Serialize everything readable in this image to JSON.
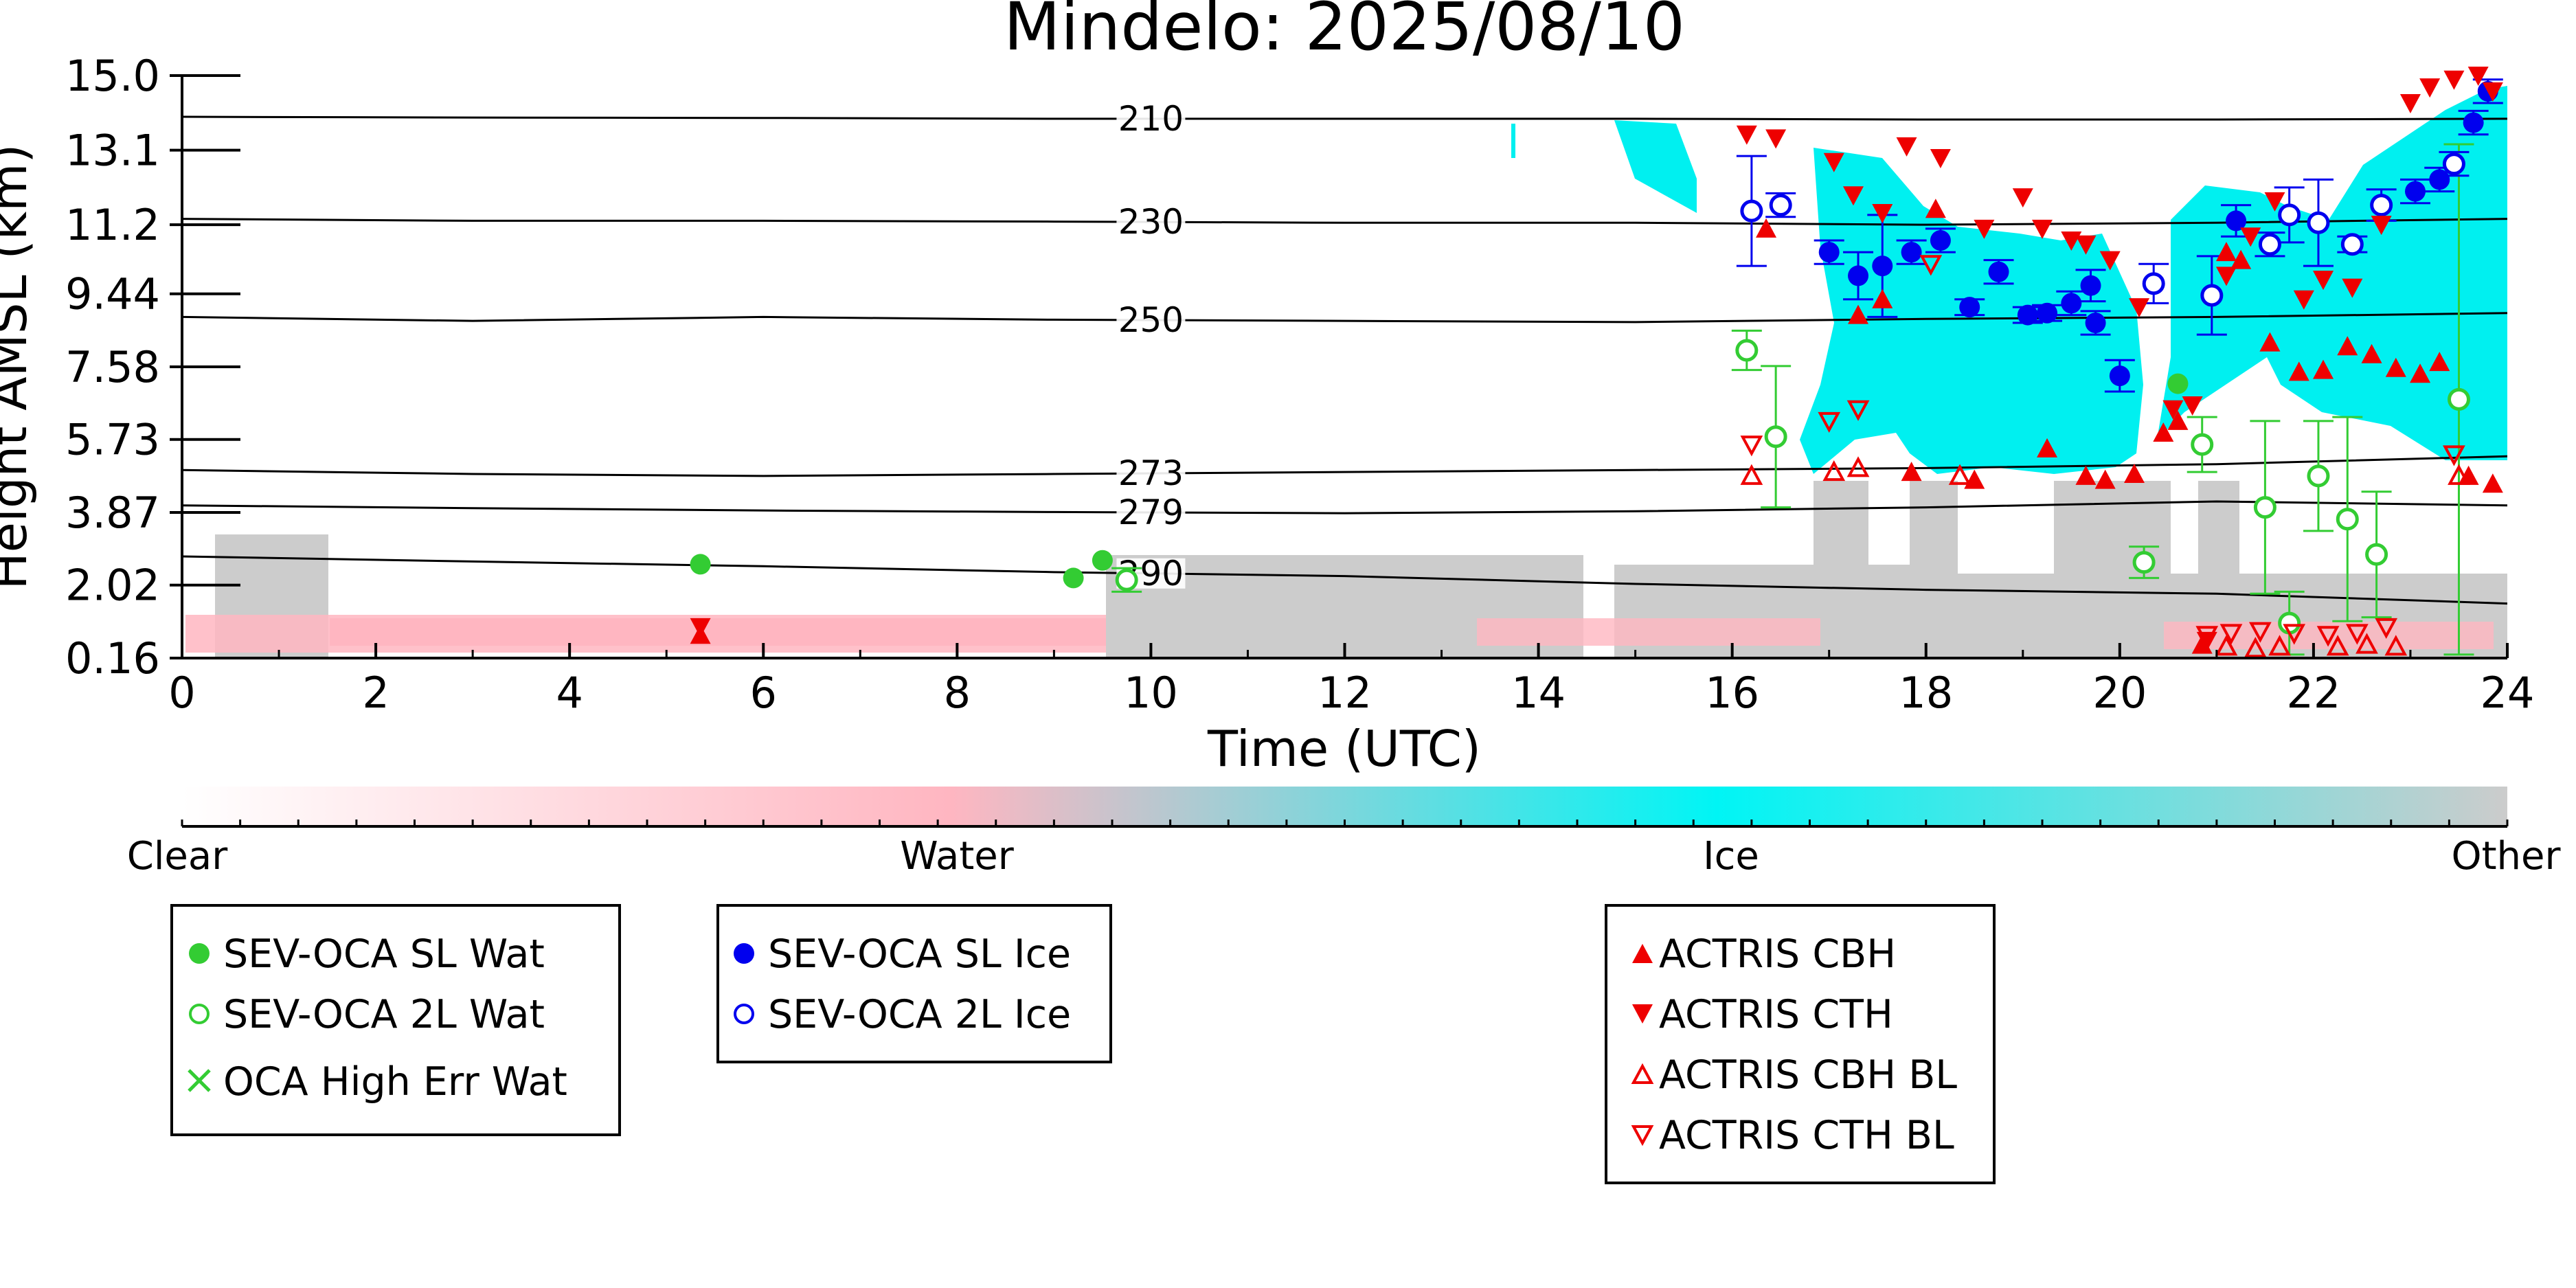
{
  "chart_data": {
    "type": "scatter",
    "title": "Mindelo: 2025/08/10",
    "xlabel": "Time (UTC)",
    "ylabel": "Height AMSL (km)",
    "xlim": [
      0,
      24
    ],
    "ylim": [
      0.16,
      15.0
    ],
    "x_ticks": [
      "0",
      "2",
      "4",
      "6",
      "8",
      "10",
      "12",
      "14",
      "16",
      "18",
      "20",
      "22",
      "24"
    ],
    "y_ticks": [
      "0.16",
      "2.02",
      "3.87",
      "5.73",
      "7.58",
      "9.44",
      "11.2",
      "13.1",
      "15.0"
    ],
    "y_tick_values": [
      0.16,
      2.02,
      3.87,
      5.73,
      7.58,
      9.44,
      11.2,
      13.1,
      15.0
    ],
    "colorbar": {
      "labels": [
        "Clear",
        "Water",
        "Ice",
        "Other"
      ],
      "colors": [
        "#ffffff",
        "#ffb6c1",
        "#00ffff",
        "#cccccc"
      ]
    },
    "isotherms": [
      {
        "label": "210",
        "label_x": 10.0,
        "y": [
          13.95,
          13.93,
          13.92,
          13.9,
          13.9,
          13.9,
          13.88,
          13.88,
          13.9
        ]
      },
      {
        "label": "230",
        "label_x": 10.0,
        "y": [
          11.35,
          11.3,
          11.3,
          11.28,
          11.25,
          11.25,
          11.2,
          11.25,
          11.35
        ]
      },
      {
        "label": "250",
        "label_x": 10.0,
        "y": [
          8.85,
          8.75,
          8.85,
          8.78,
          8.75,
          8.72,
          8.8,
          8.85,
          8.95
        ]
      },
      {
        "label": "273",
        "label_x": 10.0,
        "y": [
          4.95,
          4.85,
          4.8,
          4.85,
          4.9,
          4.95,
          5.0,
          5.1,
          5.3
        ]
      },
      {
        "label": "279",
        "label_x": 10.0,
        "y": [
          4.05,
          3.98,
          3.92,
          3.88,
          3.85,
          3.9,
          4.0,
          4.15,
          4.05
        ]
      },
      {
        "label": "290",
        "label_x": 10.0,
        "y": [
          2.75,
          2.62,
          2.5,
          2.35,
          2.25,
          2.05,
          1.9,
          1.8,
          1.55
        ]
      }
    ],
    "series": [
      {
        "name": "SEV-OCA SL Wat",
        "marker": "filled-circle",
        "color": "#33cc33",
        "x": [
          5.35,
          9.2,
          9.5,
          20.6
        ],
        "y": [
          2.55,
          2.2,
          2.65,
          7.15
        ]
      },
      {
        "name": "SEV-OCA 2L Wat",
        "marker": "open-circle",
        "color": "#33cc33",
        "x": [
          16.15,
          16.45,
          9.75,
          20.25,
          20.85,
          21.5,
          21.75,
          22.05,
          22.35,
          22.65,
          23.5
        ],
        "y": [
          8.0,
          5.8,
          2.15,
          2.6,
          5.6,
          4.0,
          1.05,
          4.8,
          3.7,
          2.8,
          6.75
        ],
        "err": [
          0.5,
          1.8,
          0.3,
          0.4,
          0.7,
          2.2,
          0.8,
          1.4,
          2.6,
          1.6,
          6.5
        ]
      },
      {
        "name": "OCA High Err Wat",
        "marker": "x",
        "color": "#33cc33",
        "x": [],
        "y": []
      },
      {
        "name": "SEV-OCA SL Ice",
        "marker": "filled-circle",
        "color": "#0000ee",
        "x": [
          17.0,
          17.3,
          17.55,
          17.85,
          18.15,
          18.45,
          18.75,
          19.05,
          19.25,
          19.5,
          19.7,
          19.75,
          20.0,
          21.2,
          23.05,
          23.3,
          23.65,
          23.8
        ],
        "y": [
          10.5,
          9.9,
          10.15,
          10.5,
          10.8,
          9.1,
          10.0,
          8.9,
          8.95,
          9.2,
          9.65,
          8.7,
          7.35,
          11.3,
          12.05,
          12.35,
          13.8,
          14.6
        ],
        "err": [
          0.3,
          0.6,
          1.3,
          0.3,
          0.3,
          0.2,
          0.3,
          0.2,
          0.2,
          0.3,
          0.4,
          0.3,
          0.4,
          0.4,
          0.3,
          0.3,
          0.3,
          0.3
        ]
      },
      {
        "name": "SEV-OCA 2L Ice",
        "marker": "open-circle",
        "color": "#0000ee",
        "x": [
          16.2,
          16.5,
          20.35,
          20.95,
          21.55,
          21.75,
          22.05,
          22.4,
          22.7,
          23.45
        ],
        "y": [
          11.55,
          11.7,
          9.7,
          9.4,
          10.7,
          11.45,
          11.25,
          10.7,
          11.7,
          12.75
        ],
        "err": [
          1.4,
          0.3,
          0.5,
          1.0,
          0.3,
          0.7,
          1.1,
          0.2,
          0.4,
          0.3
        ]
      },
      {
        "name": "ACTRIS CBH",
        "marker": "triangle-up",
        "color": "#ee0000",
        "x": [
          5.35,
          16.35,
          17.3,
          17.55,
          17.85,
          18.1,
          18.5,
          19.25,
          19.65,
          19.85,
          20.15,
          20.45,
          20.6,
          20.85,
          21.1,
          21.25,
          21.55,
          21.85,
          22.1,
          22.35,
          22.6,
          22.85,
          23.1,
          23.3,
          23.6,
          23.85
        ],
        "y": [
          0.75,
          11.1,
          8.9,
          9.3,
          4.9,
          11.6,
          4.7,
          5.5,
          4.8,
          4.7,
          4.85,
          5.9,
          6.2,
          0.5,
          10.5,
          10.3,
          8.2,
          7.45,
          7.5,
          8.1,
          7.9,
          7.55,
          7.4,
          7.7,
          4.8,
          4.6
        ]
      },
      {
        "name": "ACTRIS CTH",
        "marker": "triangle-down",
        "color": "#ee0000",
        "x": [
          5.35,
          16.15,
          16.45,
          17.05,
          17.25,
          17.55,
          17.8,
          18.15,
          18.6,
          19.0,
          19.2,
          19.5,
          19.65,
          19.9,
          20.2,
          20.55,
          20.75,
          20.9,
          21.1,
          21.35,
          21.6,
          21.9,
          22.1,
          22.4,
          22.7,
          23.0,
          23.2,
          23.45,
          23.7,
          23.85
        ],
        "y": [
          0.95,
          13.5,
          13.4,
          12.8,
          11.95,
          11.5,
          13.2,
          12.9,
          11.1,
          11.9,
          11.1,
          10.8,
          10.7,
          10.3,
          9.1,
          6.5,
          6.6,
          0.6,
          9.9,
          10.9,
          11.8,
          9.3,
          9.8,
          9.6,
          11.2,
          14.3,
          14.7,
          14.9,
          15.0,
          14.6
        ]
      },
      {
        "name": "ACTRIS CBH BL",
        "marker": "open-triangle-up",
        "color": "#ee0000",
        "x": [
          16.2,
          17.05,
          17.3,
          18.35,
          21.1,
          21.4,
          21.65,
          22.25,
          22.55,
          22.85,
          23.5
        ],
        "y": [
          4.8,
          4.9,
          5.0,
          4.8,
          0.45,
          0.4,
          0.45,
          0.45,
          0.5,
          0.45,
          4.8
        ]
      },
      {
        "name": "ACTRIS CTH BL",
        "marker": "open-triangle-down",
        "color": "#ee0000",
        "x": [
          16.2,
          17.0,
          17.3,
          18.05,
          20.9,
          21.15,
          21.45,
          21.8,
          22.15,
          22.45,
          22.75,
          23.45
        ],
        "y": [
          5.6,
          6.2,
          6.5,
          10.2,
          0.75,
          0.8,
          0.85,
          0.8,
          0.75,
          0.8,
          0.95,
          5.35
        ]
      }
    ],
    "legend_boxes": [
      {
        "position": "lower-left",
        "entries": [
          "SEV-OCA SL Wat",
          "SEV-OCA 2L Wat",
          "OCA High Err Wat"
        ]
      },
      {
        "position": "lower-left-center",
        "entries": [
          "SEV-OCA SL Ice",
          "SEV-OCA 2L Ice"
        ]
      },
      {
        "position": "lower-center-right",
        "entries": [
          "ACTRIS CBH",
          "ACTRIS CTH",
          "ACTRIS CBH BL",
          "ACTRIS CTH BL"
        ]
      }
    ]
  }
}
